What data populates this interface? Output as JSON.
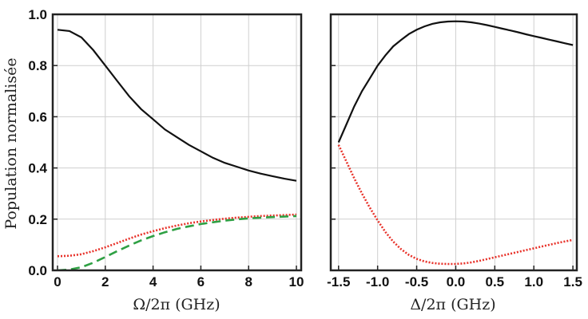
{
  "ylabel": "Population normalisée",
  "chart_data": [
    {
      "type": "line",
      "xlabel": "Ω/2π (GHz)",
      "ylabel": "Population normalisée",
      "xlim": [
        -0.2,
        10.2
      ],
      "ylim": [
        0,
        1
      ],
      "x_ticks": [
        "0",
        "2",
        "4",
        "6",
        "8",
        "10"
      ],
      "y_ticks": [
        "0.0",
        "0.2",
        "0.4",
        "0.6",
        "0.8",
        "1.0"
      ],
      "grid": true,
      "series": [
        {
          "color": "#111111",
          "style": "solid",
          "x": [
            0,
            0.5,
            1,
            1.5,
            2,
            2.5,
            3,
            3.5,
            4,
            4.5,
            5,
            5.5,
            6,
            6.5,
            7,
            7.5,
            8,
            8.5,
            9,
            9.5,
            10
          ],
          "y": [
            0.94,
            0.935,
            0.91,
            0.86,
            0.8,
            0.74,
            0.68,
            0.63,
            0.59,
            0.55,
            0.52,
            0.49,
            0.465,
            0.44,
            0.42,
            0.405,
            0.39,
            0.378,
            0.368,
            0.358,
            0.35
          ]
        },
        {
          "color": "#e8322a",
          "style": "dotted",
          "x": [
            0,
            0.5,
            1,
            1.5,
            2,
            2.5,
            3,
            3.5,
            4,
            4.5,
            5,
            5.5,
            6,
            6.5,
            7,
            7.5,
            8,
            8.5,
            9,
            9.5,
            10
          ],
          "y": [
            0.055,
            0.057,
            0.063,
            0.075,
            0.09,
            0.107,
            0.124,
            0.14,
            0.153,
            0.165,
            0.175,
            0.184,
            0.191,
            0.197,
            0.202,
            0.206,
            0.209,
            0.212,
            0.214,
            0.216,
            0.218
          ]
        },
        {
          "color": "#2ea043",
          "style": "dashed",
          "x": [
            0,
            0.5,
            1,
            1.5,
            2,
            2.5,
            3,
            3.5,
            4,
            4.5,
            5,
            5.5,
            6,
            6.5,
            7,
            7.5,
            8,
            8.5,
            9,
            9.5,
            10
          ],
          "y": [
            0.0,
            0.003,
            0.012,
            0.03,
            0.052,
            0.075,
            0.097,
            0.117,
            0.134,
            0.149,
            0.162,
            0.172,
            0.181,
            0.188,
            0.194,
            0.199,
            0.203,
            0.206,
            0.208,
            0.21,
            0.212
          ]
        }
      ]
    },
    {
      "type": "line",
      "xlabel": "Δ/2π (GHz)",
      "ylabel": "",
      "xlim": [
        -1.6,
        1.55
      ],
      "ylim": [
        0,
        1
      ],
      "x_ticks": [
        "-1.5",
        "-1.0",
        "-0.5",
        "0.0",
        "0.5",
        "1.0",
        "1.5"
      ],
      "grid": true,
      "series": [
        {
          "color": "#111111",
          "style": "solid",
          "x": [
            -1.5,
            -1.4,
            -1.3,
            -1.2,
            -1.1,
            -1.0,
            -0.9,
            -0.8,
            -0.7,
            -0.6,
            -0.5,
            -0.4,
            -0.3,
            -0.2,
            -0.1,
            0.0,
            0.1,
            0.2,
            0.3,
            0.4,
            0.5,
            0.6,
            0.7,
            0.8,
            0.9,
            1.0,
            1.1,
            1.2,
            1.3,
            1.4,
            1.5
          ],
          "y": [
            0.5,
            0.57,
            0.64,
            0.7,
            0.75,
            0.8,
            0.84,
            0.875,
            0.9,
            0.923,
            0.94,
            0.953,
            0.963,
            0.969,
            0.972,
            0.973,
            0.972,
            0.969,
            0.964,
            0.958,
            0.951,
            0.944,
            0.937,
            0.93,
            0.922,
            0.915,
            0.908,
            0.901,
            0.894,
            0.887,
            0.88
          ]
        },
        {
          "color": "#e8322a",
          "style": "dotted",
          "x": [
            -1.5,
            -1.4,
            -1.3,
            -1.2,
            -1.1,
            -1.0,
            -0.9,
            -0.8,
            -0.7,
            -0.6,
            -0.5,
            -0.4,
            -0.3,
            -0.2,
            -0.1,
            0.0,
            0.1,
            0.2,
            0.3,
            0.4,
            0.5,
            0.6,
            0.7,
            0.8,
            0.9,
            1.0,
            1.1,
            1.2,
            1.3,
            1.4,
            1.5
          ],
          "y": [
            0.49,
            0.425,
            0.36,
            0.3,
            0.245,
            0.195,
            0.15,
            0.112,
            0.083,
            0.06,
            0.045,
            0.035,
            0.029,
            0.026,
            0.025,
            0.025,
            0.027,
            0.031,
            0.037,
            0.044,
            0.051,
            0.058,
            0.065,
            0.072,
            0.079,
            0.086,
            0.093,
            0.1,
            0.107,
            0.113,
            0.119
          ]
        }
      ]
    }
  ]
}
